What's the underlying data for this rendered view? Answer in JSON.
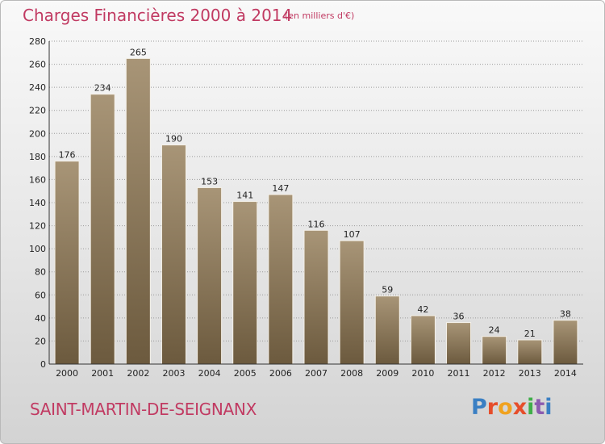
{
  "header": {
    "title": "Charges Financières 2000 à 2014",
    "unit": "(en milliers d'€)"
  },
  "footer": {
    "commune": "SAINT-MARTIN-DE-SEIGNANX",
    "brand": "Proxiti"
  },
  "colors": {
    "title": "#c13a62",
    "bar_top": "#a89577",
    "bar_bottom": "#6c5a3e",
    "brand_letters": [
      "#3a7fc3",
      "#e64d2a",
      "#f0a21f",
      "#e64d2a",
      "#3fae49",
      "#8b5bb0",
      "#3a7fc3"
    ]
  },
  "chart_data": {
    "type": "bar",
    "title": "Charges Financières 2000 à 2014",
    "subtitle": "(en milliers d'€)",
    "categories": [
      "2000",
      "2001",
      "2002",
      "2003",
      "2004",
      "2005",
      "2006",
      "2007",
      "2008",
      "2009",
      "2010",
      "2011",
      "2012",
      "2013",
      "2014"
    ],
    "values": [
      176,
      234,
      265,
      190,
      153,
      141,
      147,
      116,
      107,
      59,
      42,
      36,
      24,
      21,
      38
    ],
    "ylim": [
      0,
      280
    ],
    "yticks": [
      0,
      20,
      40,
      60,
      80,
      100,
      120,
      140,
      160,
      180,
      200,
      220,
      240,
      260,
      280
    ],
    "grid": true,
    "data_labels": true
  }
}
